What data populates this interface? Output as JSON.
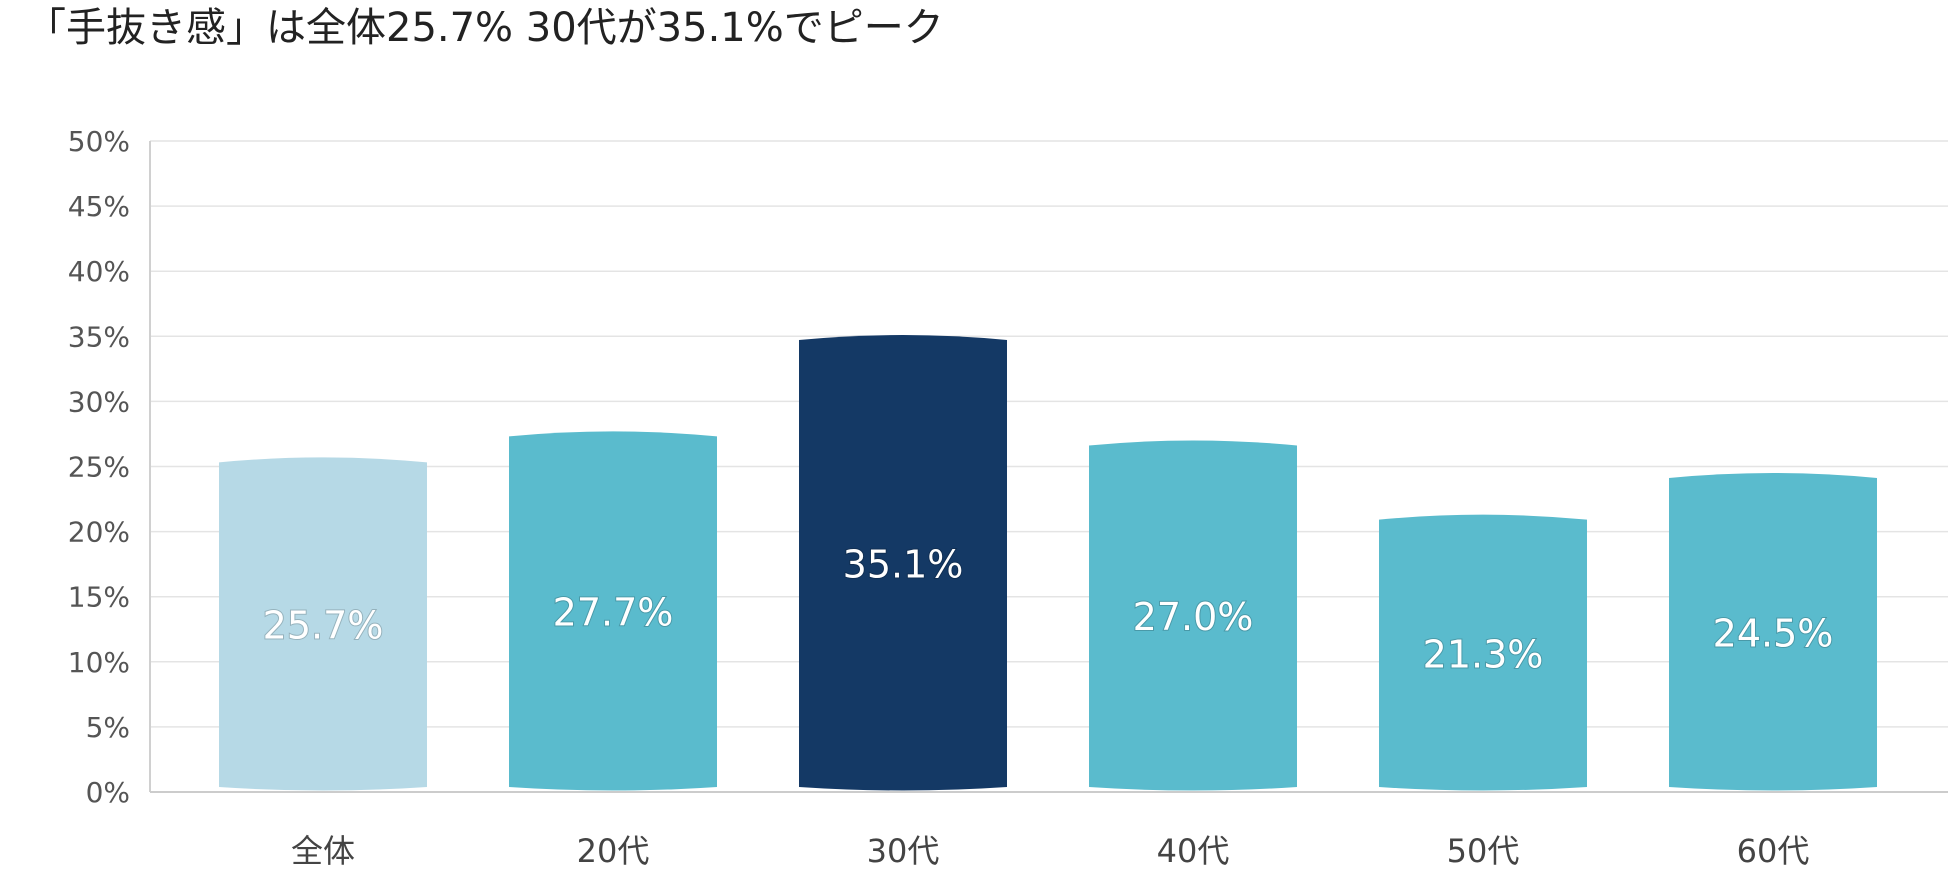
{
  "chart_data": {
    "type": "bar",
    "title": "「手抜き感」は全体25.7%  30代が35.1%でピーク",
    "xlabel": "",
    "ylabel": "",
    "categories": [
      "全体",
      "20代",
      "30代",
      "40代",
      "50代",
      "60代"
    ],
    "values": [
      25.7,
      27.7,
      35.1,
      27.0,
      21.3,
      24.5
    ],
    "data_labels": [
      "25.7%",
      "27.7%",
      "35.1%",
      "27.0%",
      "21.3%",
      "24.5%"
    ],
    "bar_colors": [
      "#b6d9e6",
      "#5abbcd",
      "#143965",
      "#5abbcd",
      "#5abbcd",
      "#5abbcd"
    ],
    "ylim": [
      0,
      50
    ],
    "yticks": [
      0,
      5,
      10,
      15,
      20,
      25,
      30,
      35,
      40,
      45,
      50
    ],
    "ytick_labels": [
      "0%",
      "5%",
      "10%",
      "15%",
      "20%",
      "25%",
      "30%",
      "35%",
      "40%",
      "45%",
      "50%"
    ],
    "grid": true,
    "legend": "none"
  }
}
